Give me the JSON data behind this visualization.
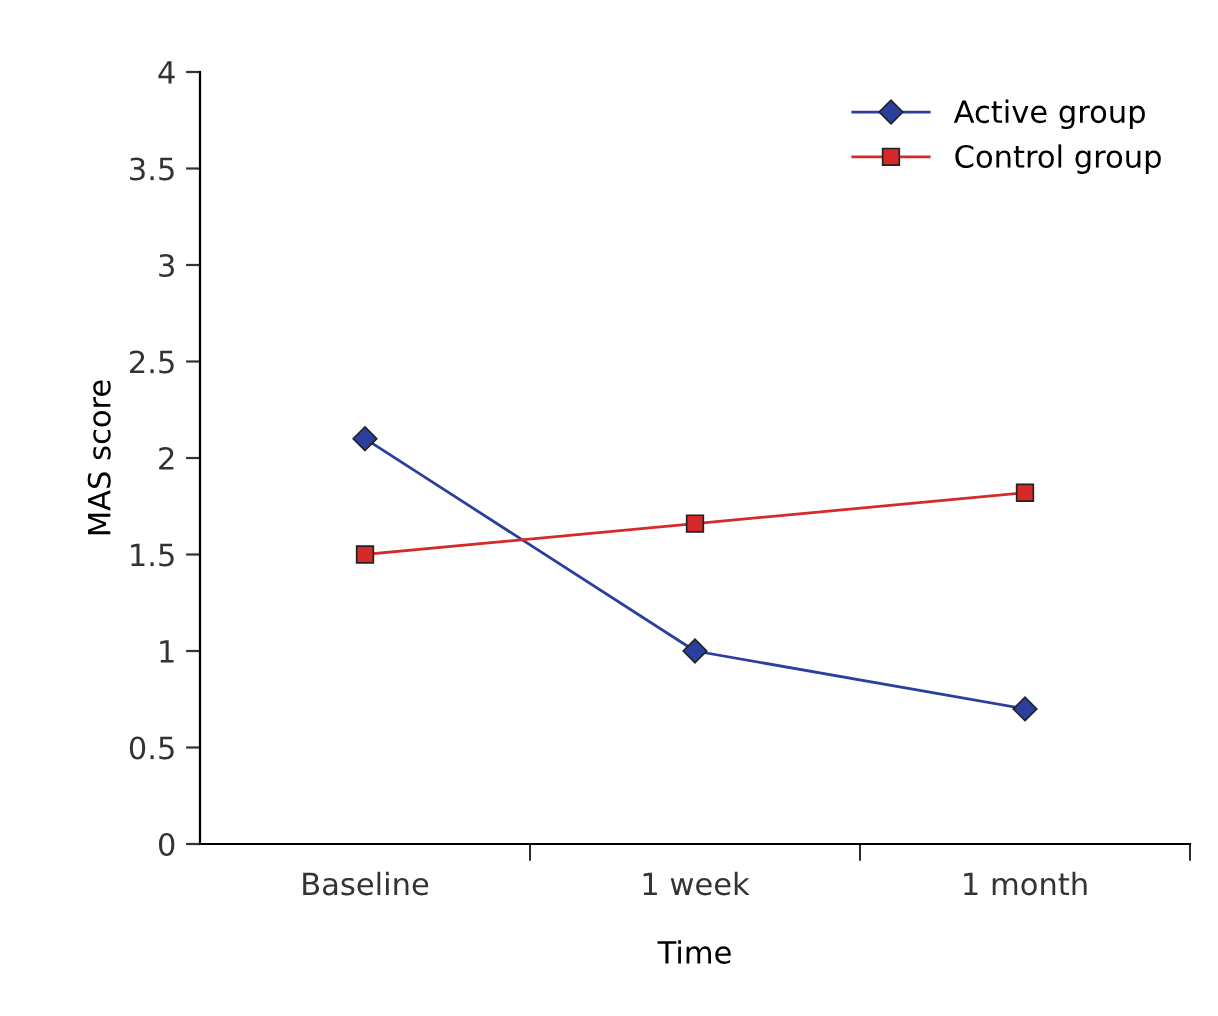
{
  "chart_data": {
    "type": "line",
    "xlabel": "Time",
    "ylabel": "MAS score",
    "categories": [
      "Baseline",
      "1 week",
      "1 month"
    ],
    "series": [
      {
        "name": "Active group",
        "color": "#2b3f9e",
        "values": [
          2.1,
          1.0,
          0.7
        ],
        "marker": "diamond"
      },
      {
        "name": "Control group",
        "color": "#d42a2a",
        "values": [
          1.5,
          1.66,
          1.82
        ],
        "marker": "square"
      }
    ],
    "ylim": [
      0,
      4
    ],
    "yticks": [
      0,
      0.5,
      1,
      1.5,
      2,
      2.5,
      3,
      3.5,
      4
    ],
    "grid": false,
    "legend": "top right",
    "line_style": "solid"
  }
}
